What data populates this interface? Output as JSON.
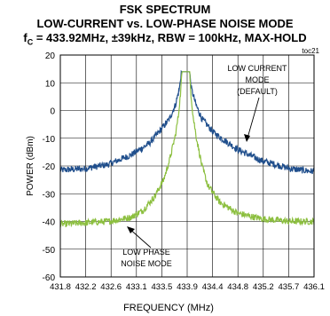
{
  "header": {
    "title": "FSK SPECTRUM",
    "subtitle": "LOW-CURRENT vs. LOW-PHASE NOISE MODE",
    "conditions_symbol": "f",
    "conditions_sub": "C",
    "conditions_rest": " = 433.92MHz, ±39kHz, RBW = 100kHz, MAX-HOLD",
    "figure_id": "toc21"
  },
  "colors": {
    "low_current": "#1f4e8c",
    "low_phase_noise": "#8cbf3f",
    "grid": "#000000"
  },
  "chart_data": {
    "type": "line",
    "title": "FSK SPECTRUM",
    "xlabel": "FREQUENCY (MHz)",
    "ylabel": "POWER (dBm)",
    "xlim": [
      431.8,
      436.1
    ],
    "ylim": [
      -60,
      20
    ],
    "x_ticks": [
      "431.8",
      "432.2",
      "432.6",
      "433.1",
      "433.5",
      "433.9",
      "434.4",
      "434.8",
      "435.2",
      "435.7",
      "436.1"
    ],
    "y_ticks": [
      "20",
      "10",
      "0",
      "-10",
      "-20",
      "-30",
      "-40",
      "-50",
      "-60"
    ],
    "grid": true,
    "series": [
      {
        "name": "LOW CURRENT MODE (DEFAULT)",
        "x": [
          431.8,
          432.2,
          432.6,
          433.0,
          433.3,
          433.5,
          433.65,
          433.75,
          433.82,
          433.85,
          433.99,
          434.02,
          434.1,
          434.2,
          434.4,
          434.8,
          435.2,
          435.7,
          436.1
        ],
        "y": [
          -21.5,
          -21,
          -19.5,
          -16,
          -12,
          -7,
          -3,
          2,
          8,
          14,
          14,
          8,
          2,
          -3,
          -8,
          -14,
          -18,
          -21,
          -22
        ]
      },
      {
        "name": "LOW PHASE NOISE MODE",
        "x": [
          431.8,
          432.2,
          432.6,
          433.0,
          433.2,
          433.4,
          433.55,
          433.65,
          433.75,
          433.8,
          433.84,
          433.86,
          433.99,
          434.01,
          434.05,
          434.1,
          434.2,
          434.3,
          434.5,
          434.8,
          435.2,
          435.7,
          436.1
        ],
        "y": [
          -41,
          -40.5,
          -40,
          -38.5,
          -36,
          -31,
          -25,
          -18,
          -9,
          -2,
          7,
          14,
          14,
          7,
          -2,
          -9,
          -20,
          -27,
          -33,
          -37,
          -39,
          -40,
          -40
        ]
      }
    ],
    "annotations": {
      "low_current": [
        "LOW CURRENT",
        "MODE",
        "(DEFAULT)"
      ],
      "low_phase": [
        "LOW PHASE",
        "NOISE MODE"
      ]
    }
  }
}
